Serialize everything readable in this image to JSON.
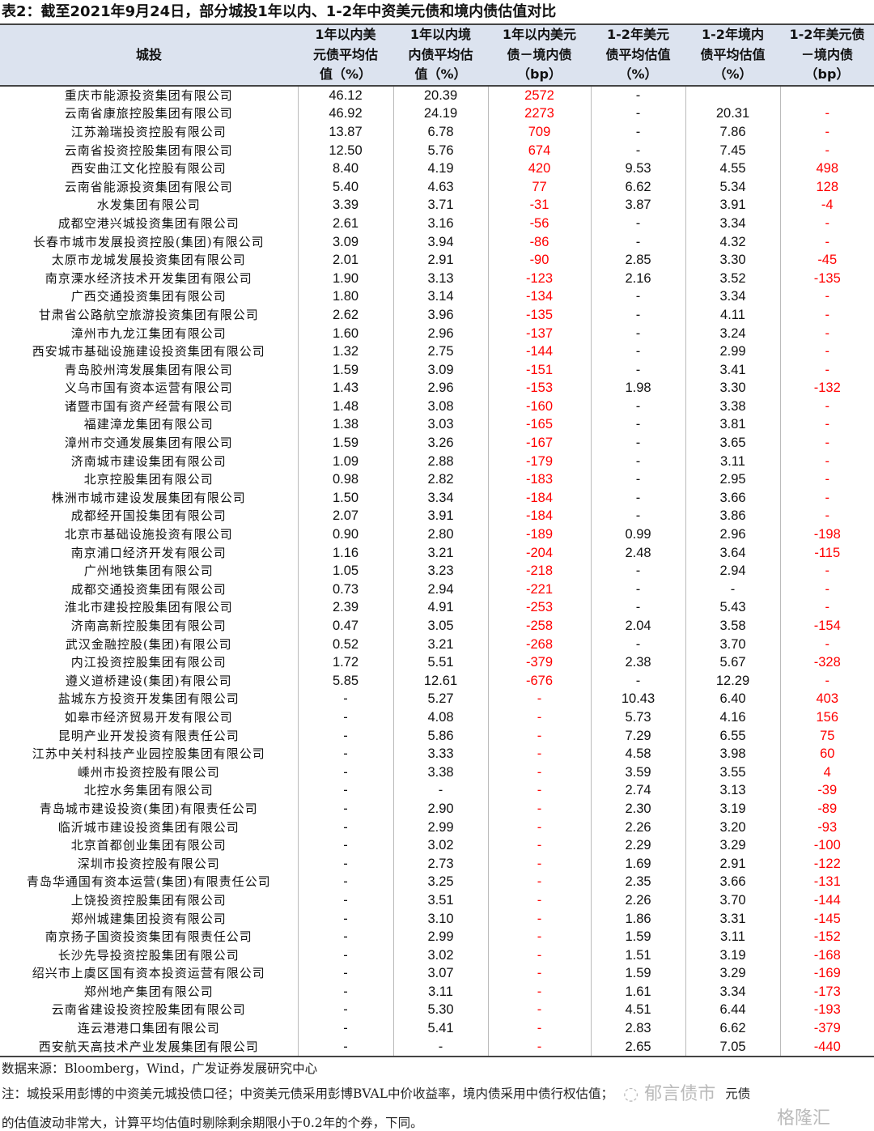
{
  "title": "表2：截至2021年9月24日，部分城投1年以内、1-2年中资美元债和境内债估值对比",
  "headers": [
    [
      "城投"
    ],
    [
      "1年以内美",
      "元债平均估",
      "值（%）"
    ],
    [
      "1年以内境",
      "内债平均估",
      "值（%）"
    ],
    [
      "1年以内美元",
      "债－境内债",
      "（bp）"
    ],
    [
      "1-2年美元",
      "债平均估值",
      "（%）"
    ],
    [
      "1-2年境内",
      "债平均估值",
      "（%）"
    ],
    [
      "1-2年美元债",
      "－境内债",
      "（bp）"
    ]
  ],
  "rows": [
    [
      "重庆市能源投资集团有限公司",
      "46.12",
      "20.39",
      "2572",
      "-",
      "",
      ""
    ],
    [
      "云南省康旅控股集团有限公司",
      "46.92",
      "24.19",
      "2273",
      "-",
      "20.31",
      "-"
    ],
    [
      "江苏瀚瑞投资控股有限公司",
      "13.87",
      "6.78",
      "709",
      "-",
      "7.86",
      "-"
    ],
    [
      "云南省投资控股集团有限公司",
      "12.50",
      "5.76",
      "674",
      "-",
      "7.45",
      "-"
    ],
    [
      "西安曲江文化控股有限公司",
      "8.40",
      "4.19",
      "420",
      "9.53",
      "4.55",
      "498"
    ],
    [
      "云南省能源投资集团有限公司",
      "5.40",
      "4.63",
      "77",
      "6.62",
      "5.34",
      "128"
    ],
    [
      "水发集团有限公司",
      "3.39",
      "3.71",
      "-31",
      "3.87",
      "3.91",
      "-4"
    ],
    [
      "成都空港兴城投资集团有限公司",
      "2.61",
      "3.16",
      "-56",
      "-",
      "3.34",
      "-"
    ],
    [
      "长春市城市发展投资控股(集团)有限公司",
      "3.09",
      "3.94",
      "-86",
      "-",
      "4.32",
      "-"
    ],
    [
      "太原市龙城发展投资集团有限公司",
      "2.01",
      "2.91",
      "-90",
      "2.85",
      "3.30",
      "-45"
    ],
    [
      "南京溧水经济技术开发集团有限公司",
      "1.90",
      "3.13",
      "-123",
      "2.16",
      "3.52",
      "-135"
    ],
    [
      "广西交通投资集团有限公司",
      "1.80",
      "3.14",
      "-134",
      "-",
      "3.34",
      "-"
    ],
    [
      "甘肃省公路航空旅游投资集团有限公司",
      "2.62",
      "3.96",
      "-135",
      "-",
      "4.11",
      "-"
    ],
    [
      "漳州市九龙江集团有限公司",
      "1.60",
      "2.96",
      "-137",
      "-",
      "3.24",
      "-"
    ],
    [
      "西安城市基础设施建设投资集团有限公司",
      "1.32",
      "2.75",
      "-144",
      "-",
      "2.99",
      "-"
    ],
    [
      "青岛胶州湾发展集团有限公司",
      "1.59",
      "3.09",
      "-151",
      "-",
      "3.41",
      "-"
    ],
    [
      "义乌市国有资本运营有限公司",
      "1.43",
      "2.96",
      "-153",
      "1.98",
      "3.30",
      "-132"
    ],
    [
      "诸暨市国有资产经营有限公司",
      "1.48",
      "3.08",
      "-160",
      "-",
      "3.38",
      "-"
    ],
    [
      "福建漳龙集团有限公司",
      "1.38",
      "3.03",
      "-165",
      "-",
      "3.81",
      "-"
    ],
    [
      "漳州市交通发展集团有限公司",
      "1.59",
      "3.26",
      "-167",
      "-",
      "3.65",
      "-"
    ],
    [
      "济南城市建设集团有限公司",
      "1.09",
      "2.88",
      "-179",
      "-",
      "3.11",
      "-"
    ],
    [
      "北京控股集团有限公司",
      "0.98",
      "2.82",
      "-183",
      "-",
      "2.95",
      "-"
    ],
    [
      "株洲市城市建设发展集团有限公司",
      "1.50",
      "3.34",
      "-184",
      "-",
      "3.66",
      "-"
    ],
    [
      "成都经开国投集团有限公司",
      "2.07",
      "3.91",
      "-184",
      "-",
      "3.86",
      "-"
    ],
    [
      "北京市基础设施投资有限公司",
      "0.90",
      "2.80",
      "-189",
      "0.99",
      "2.96",
      "-198"
    ],
    [
      "南京浦口经济开发有限公司",
      "1.16",
      "3.21",
      "-204",
      "2.48",
      "3.64",
      "-115"
    ],
    [
      "广州地铁集团有限公司",
      "1.05",
      "3.23",
      "-218",
      "-",
      "2.94",
      "-"
    ],
    [
      "成都交通投资集团有限公司",
      "0.73",
      "2.94",
      "-221",
      "-",
      "-",
      "-"
    ],
    [
      "淮北市建投控股集团有限公司",
      "2.39",
      "4.91",
      "-253",
      "-",
      "5.43",
      "-"
    ],
    [
      "济南高新控股集团有限公司",
      "0.47",
      "3.05",
      "-258",
      "2.04",
      "3.58",
      "-154"
    ],
    [
      "武汉金融控股(集团)有限公司",
      "0.52",
      "3.21",
      "-268",
      "-",
      "3.70",
      "-"
    ],
    [
      "内江投资控股集团有限公司",
      "1.72",
      "5.51",
      "-379",
      "2.38",
      "5.67",
      "-328"
    ],
    [
      "遵义道桥建设(集团)有限公司",
      "5.85",
      "12.61",
      "-676",
      "-",
      "12.29",
      "-"
    ],
    [
      "盐城东方投资开发集团有限公司",
      "-",
      "5.27",
      "-",
      "10.43",
      "6.40",
      "403"
    ],
    [
      "如皋市经济贸易开发有限公司",
      "-",
      "4.08",
      "-",
      "5.73",
      "4.16",
      "156"
    ],
    [
      "昆明产业开发投资有限责任公司",
      "-",
      "5.86",
      "-",
      "7.29",
      "6.55",
      "75"
    ],
    [
      "江苏中关村科技产业园控股集团有限公司",
      "-",
      "3.33",
      "-",
      "4.58",
      "3.98",
      "60"
    ],
    [
      "嵊州市投资控股有限公司",
      "-",
      "3.38",
      "-",
      "3.59",
      "3.55",
      "4"
    ],
    [
      "北控水务集团有限公司",
      "-",
      "-",
      "-",
      "2.74",
      "3.13",
      "-39"
    ],
    [
      "青岛城市建设投资(集团)有限责任公司",
      "-",
      "2.90",
      "-",
      "2.30",
      "3.19",
      "-89"
    ],
    [
      "临沂城市建设投资集团有限公司",
      "-",
      "2.99",
      "-",
      "2.26",
      "3.20",
      "-93"
    ],
    [
      "北京首都创业集团有限公司",
      "-",
      "3.02",
      "-",
      "2.29",
      "3.29",
      "-100"
    ],
    [
      "深圳市投资控股有限公司",
      "-",
      "2.73",
      "-",
      "1.69",
      "2.91",
      "-122"
    ],
    [
      "青岛华通国有资本运营(集团)有限责任公司",
      "-",
      "3.25",
      "-",
      "2.35",
      "3.66",
      "-131"
    ],
    [
      "上饶投资控股集团有限公司",
      "-",
      "3.51",
      "-",
      "2.26",
      "3.70",
      "-144"
    ],
    [
      "郑州城建集团投资有限公司",
      "-",
      "3.10",
      "-",
      "1.86",
      "3.31",
      "-145"
    ],
    [
      "南京扬子国资投资集团有限责任公司",
      "-",
      "2.99",
      "-",
      "1.59",
      "3.11",
      "-152"
    ],
    [
      "长沙先导投资控股集团有限公司",
      "-",
      "3.02",
      "-",
      "1.51",
      "3.19",
      "-168"
    ],
    [
      "绍兴市上虞区国有资本投资运营有限公司",
      "-",
      "3.07",
      "-",
      "1.59",
      "3.29",
      "-169"
    ],
    [
      "郑州地产集团有限公司",
      "-",
      "3.11",
      "-",
      "1.61",
      "3.34",
      "-173"
    ],
    [
      "云南省建设投资控股集团有限公司",
      "-",
      "5.30",
      "-",
      "4.51",
      "6.44",
      "-193"
    ],
    [
      "连云港港口集团有限公司",
      "-",
      "5.41",
      "-",
      "2.83",
      "6.62",
      "-379"
    ],
    [
      "西安航天高技术产业发展集团有限公司",
      "-",
      "-",
      "-",
      "2.65",
      "7.05",
      "-440"
    ]
  ],
  "colors": {
    "header_bg": "#dce3ef",
    "negative_spread": "#ff0000"
  },
  "source": "数据来源：Bloomberg，Wind，广发证券发展研究中心",
  "note_line1": "注：城投采用彭博的中资美元城投债口径；中资美元债采用彭博BVAL中价收益率，境内债采用中债行权估值；",
  "note_line1_tail": "元债",
  "note_line2": "的估值波动非常大，计算平均估值时剔除剩余期限小于0.2年的个券，下同。",
  "watermarks": [
    "郁言债市",
    "格隆汇"
  ]
}
